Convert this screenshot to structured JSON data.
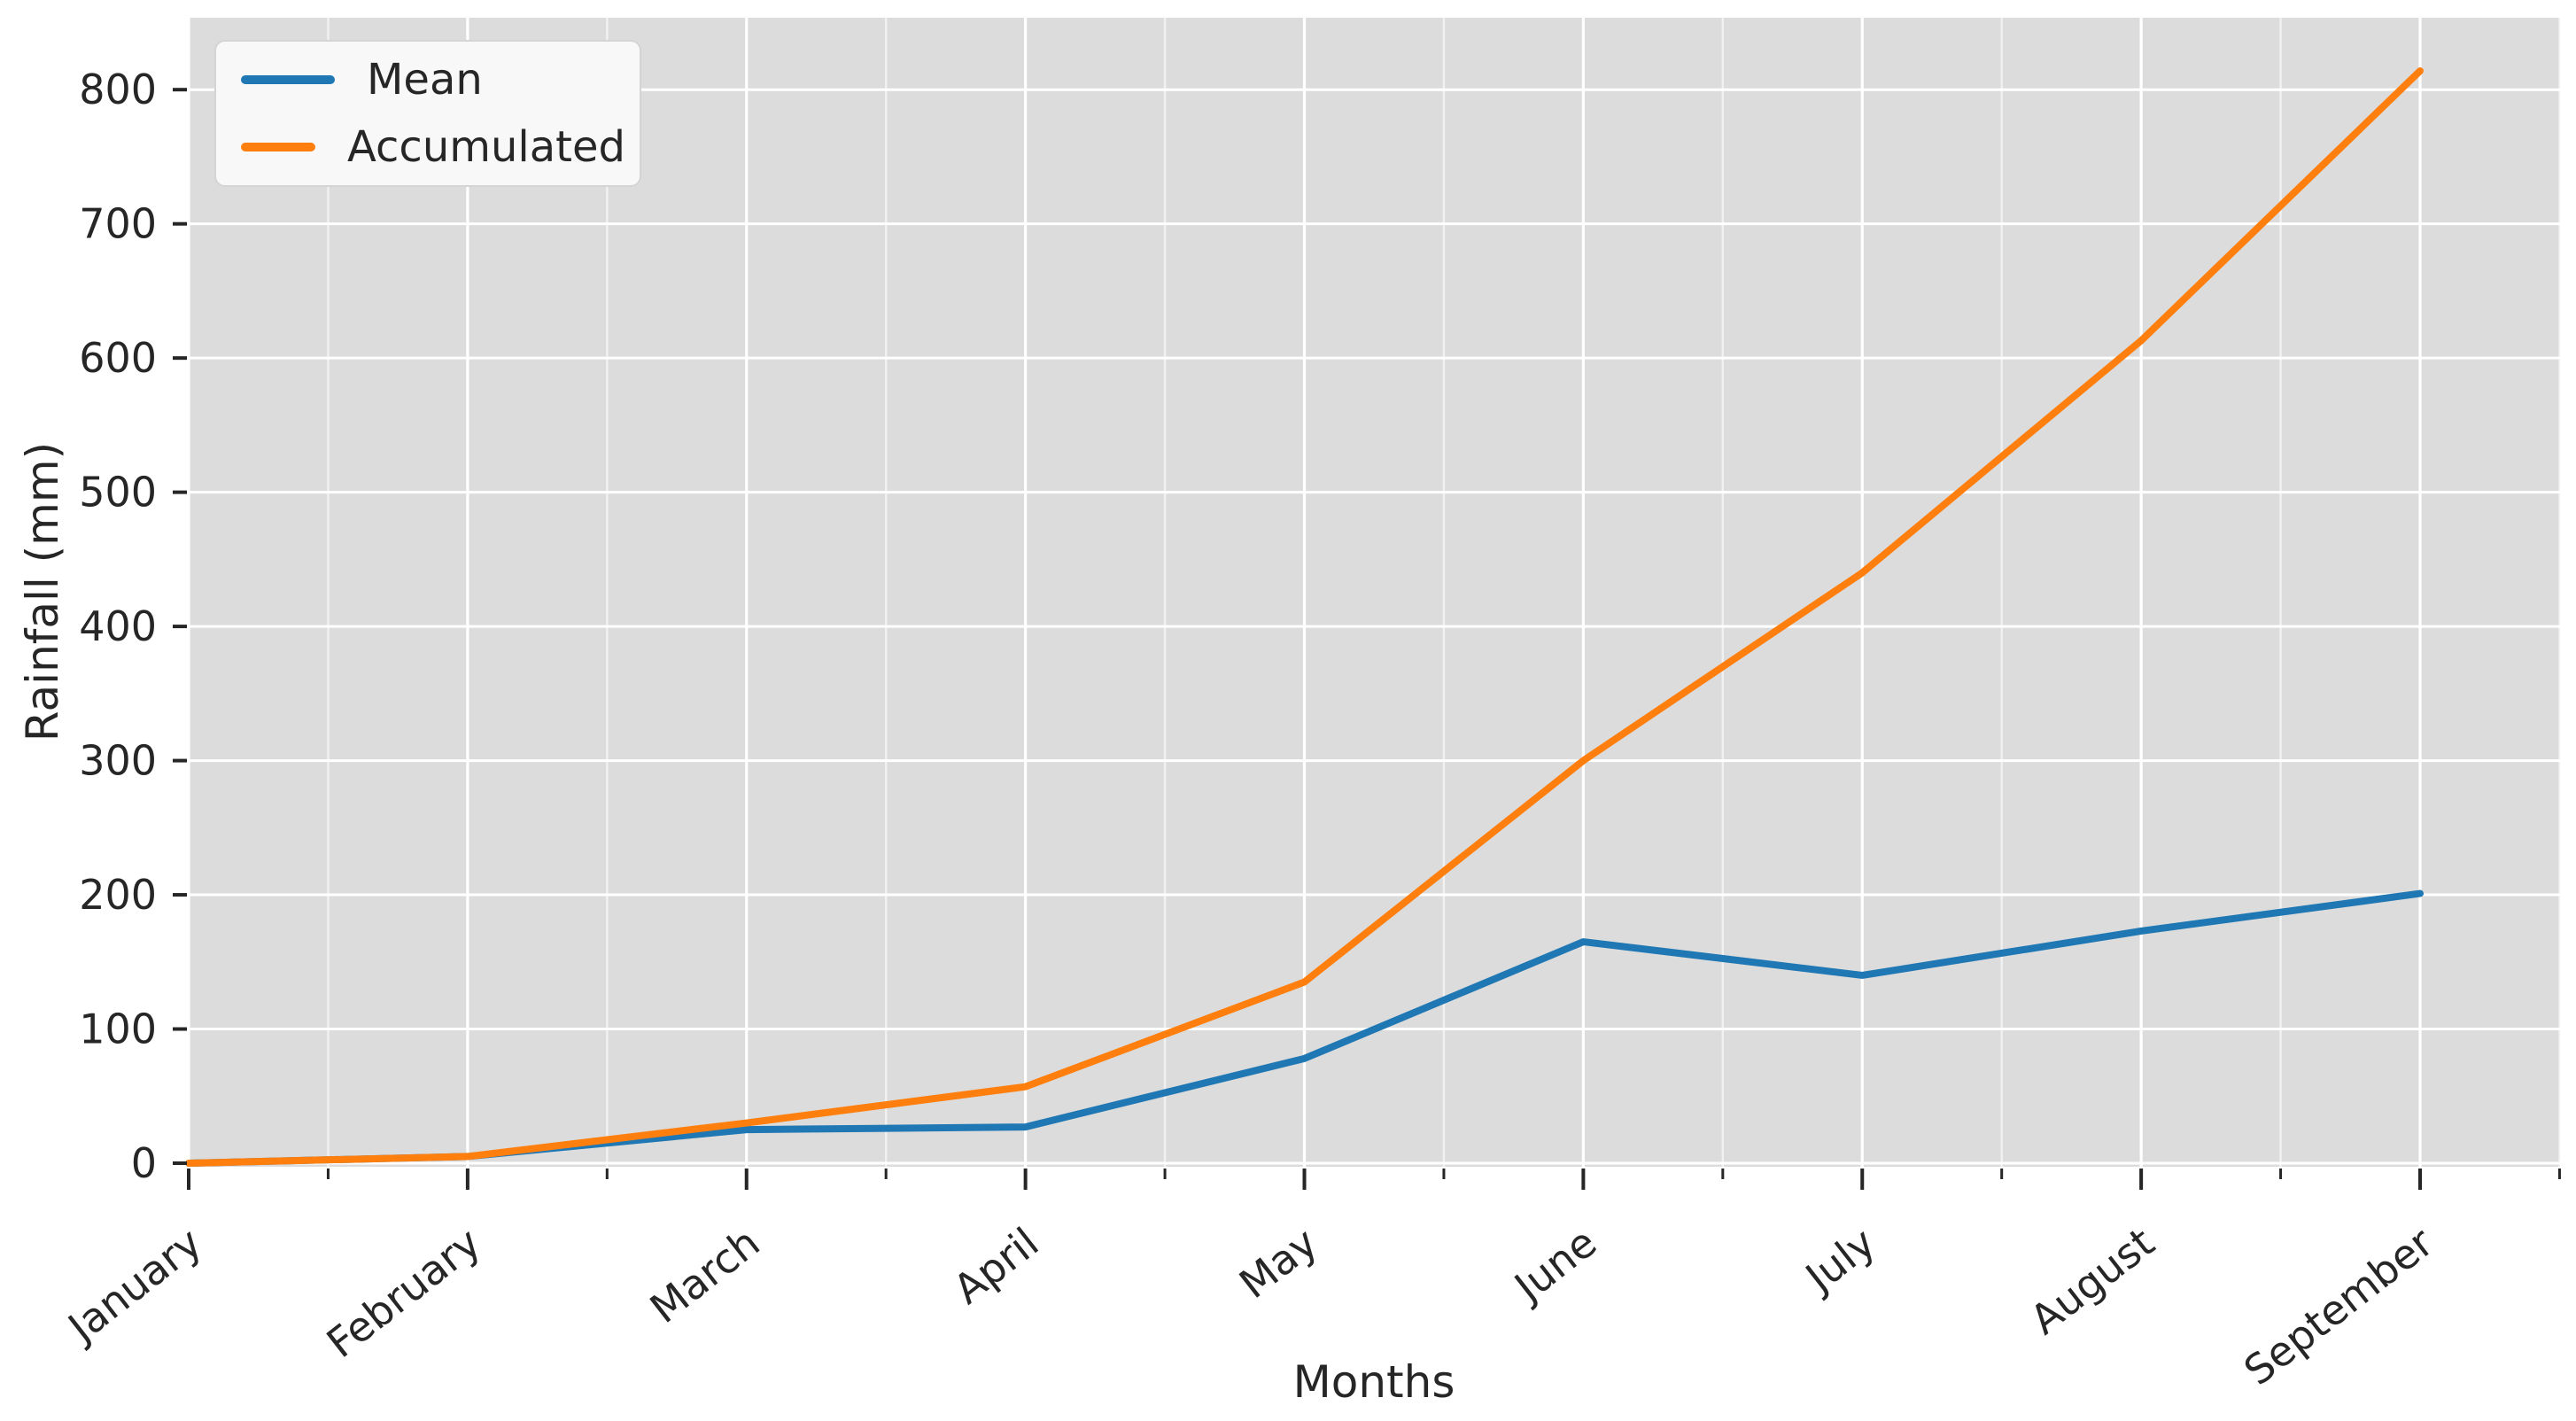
{
  "chart_data": {
    "type": "line",
    "title": "",
    "xlabel": "Months",
    "ylabel": "Rainfall (mm)",
    "categories": [
      "January",
      "February",
      "March",
      "April",
      "May",
      "June",
      "July",
      "August",
      "September"
    ],
    "series": [
      {
        "name": "Mean",
        "color": "#1f77b4",
        "values": [
          0,
          5,
          25,
          27,
          78,
          165,
          140,
          173,
          201
        ]
      },
      {
        "name": "Accumulated",
        "color": "#ff7f0e",
        "values": [
          0,
          5,
          30,
          57,
          135,
          300,
          440,
          613,
          814
        ]
      }
    ],
    "y_ticks": [
      0,
      100,
      200,
      300,
      400,
      500,
      600,
      700,
      800
    ],
    "ylim": [
      -8,
      856
    ],
    "xlim_categories": [
      0,
      8.5
    ],
    "grid": "major-and-minor-x, major-y",
    "legend_position": "upper-left",
    "x_tick_label_rotation_deg": -38,
    "plot_background": "#dcdcdc",
    "gridline_color": "#ffffff",
    "tick_color": "#262626",
    "text_color": "#262626"
  },
  "legend": {
    "items": [
      {
        "label": "Mean"
      },
      {
        "label": "Accumulated"
      }
    ]
  }
}
